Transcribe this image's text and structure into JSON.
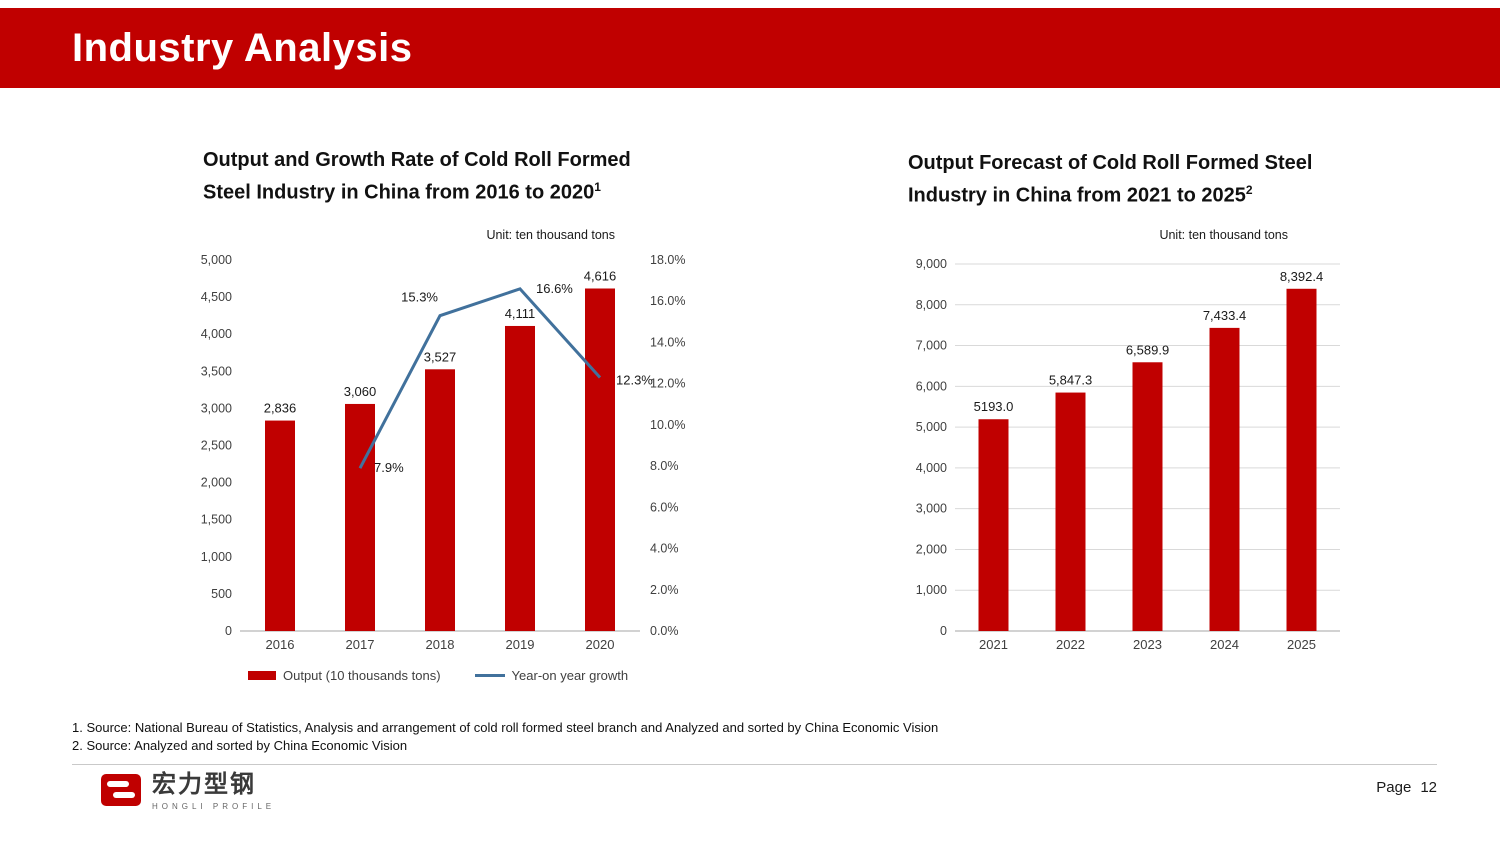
{
  "header": {
    "title": "Industry Analysis"
  },
  "colors": {
    "brand_red": "#C00000",
    "line_blue": "#41719C",
    "grid_gray": "#D9D9D9",
    "axis_line_gray": "#A6A6A6",
    "axis_text_gray": "#404040"
  },
  "chart_data": [
    {
      "type": "bar",
      "title_lines": [
        "Output and Growth Rate of Cold Roll Formed",
        "Steel Industry in China from 2016 to 2020"
      ],
      "title_sup": "1",
      "unit_label": "Unit: ten thousand tons",
      "categories": [
        "2016",
        "2017",
        "2018",
        "2019",
        "2020"
      ],
      "series": [
        {
          "name": "Output (10 thousands tons)",
          "kind": "bar",
          "axis": "left",
          "color": "#C00000",
          "values": [
            2836,
            3060,
            3527,
            4111,
            4616
          ],
          "value_labels": [
            "2,836",
            "3,060",
            "3,527",
            "4,111",
            "4,616"
          ]
        },
        {
          "name": "Year-on year growth",
          "kind": "line",
          "axis": "right",
          "color": "#41719C",
          "values": [
            null,
            7.9,
            15.3,
            16.6,
            12.3
          ],
          "value_labels": [
            null,
            "7.9%",
            "15.3%",
            "16.6%",
            "12.3%"
          ],
          "label_offsets": [
            null,
            [
              14,
              4,
              "start"
            ],
            [
              -2,
              -14,
              "end"
            ],
            [
              16,
              4,
              "start"
            ],
            [
              16,
              7,
              "start"
            ]
          ]
        }
      ],
      "y_left": {
        "min": 0,
        "max": 5000,
        "step": 500,
        "tick_labels": [
          "0",
          "500",
          "1,000",
          "1,500",
          "2,000",
          "2,500",
          "3,000",
          "3,500",
          "4,000",
          "4,500",
          "5,000"
        ]
      },
      "y_right": {
        "min": 0,
        "max": 18,
        "step": 2,
        "tick_labels": [
          "0.0%",
          "2.0%",
          "4.0%",
          "6.0%",
          "8.0%",
          "10.0%",
          "12.0%",
          "14.0%",
          "16.0%",
          "18.0%"
        ]
      },
      "grid": false,
      "legend_position": "bottom"
    },
    {
      "type": "bar",
      "title_lines": [
        "Output Forecast of Cold Roll Formed Steel",
        "Industry in China from 2021 to 2025"
      ],
      "title_sup": "2",
      "unit_label": "Unit: ten thousand tons",
      "categories": [
        "2021",
        "2022",
        "2023",
        "2024",
        "2025"
      ],
      "series": [
        {
          "kind": "bar",
          "axis": "left",
          "color": "#C00000",
          "values": [
            5193.0,
            5847.3,
            6589.9,
            7433.4,
            8392.4
          ],
          "value_labels": [
            "5193.0",
            "5,847.3",
            "6,589.9",
            "7,433.4",
            "8,392.4"
          ]
        }
      ],
      "y_left": {
        "min": 0,
        "max": 9000,
        "step": 1000,
        "tick_labels": [
          "0",
          "1,000",
          "2,000",
          "3,000",
          "4,000",
          "5,000",
          "6,000",
          "7,000",
          "8,000",
          "9,000"
        ]
      },
      "grid": true,
      "legend_position": "none"
    }
  ],
  "footnotes": [
    "1. Source: National Bureau of Statistics, Analysis and arrangement of cold roll formed steel branch and Analyzed and sorted by China Economic Vision",
    "2. Source: Analyzed and sorted by China Economic Vision"
  ],
  "footer": {
    "logo_text_cn": "宏力型钢",
    "logo_text_en": "HONGLI PROFILE",
    "page_label": "Page",
    "page_number": "12"
  }
}
